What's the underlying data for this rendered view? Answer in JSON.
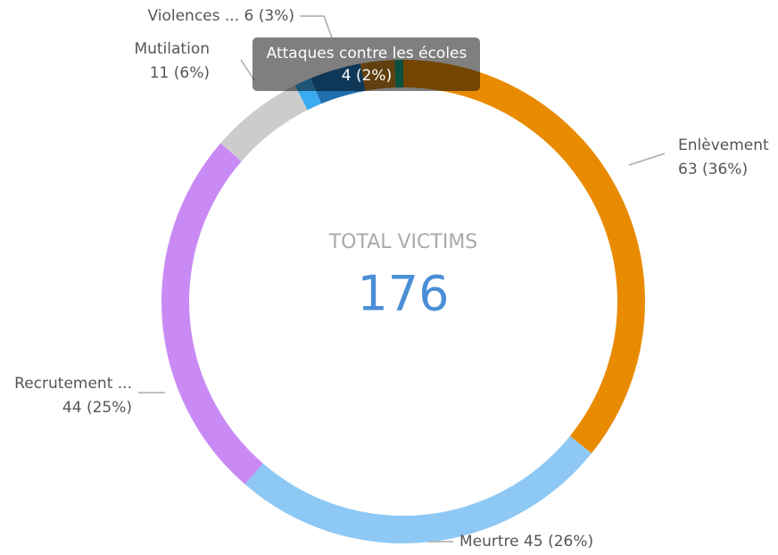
{
  "chart_data": {
    "type": "donut",
    "center_label": "TOTAL VICTIMS",
    "total": 176,
    "categories": [
      "Enlèvement",
      "Meurtre",
      "Recrutement ...",
      "Mutilation",
      null,
      "Violences ...",
      "Attaques contre les écoles",
      null
    ],
    "values": [
      63,
      45,
      44,
      11,
      2,
      6,
      4,
      1
    ],
    "value_labels": [
      "63 (36%)",
      "45 (26%)",
      "44 (25%)",
      "11 (6%)",
      null,
      "6 (3%)",
      "4 (2%)",
      null
    ],
    "colors": [
      "#e98b00",
      "#8ec8f5",
      "#c98af5",
      "#cccccc",
      "#3aabf0",
      "#1f6fae",
      "#c47f1c",
      "#14a07c"
    ]
  }
}
